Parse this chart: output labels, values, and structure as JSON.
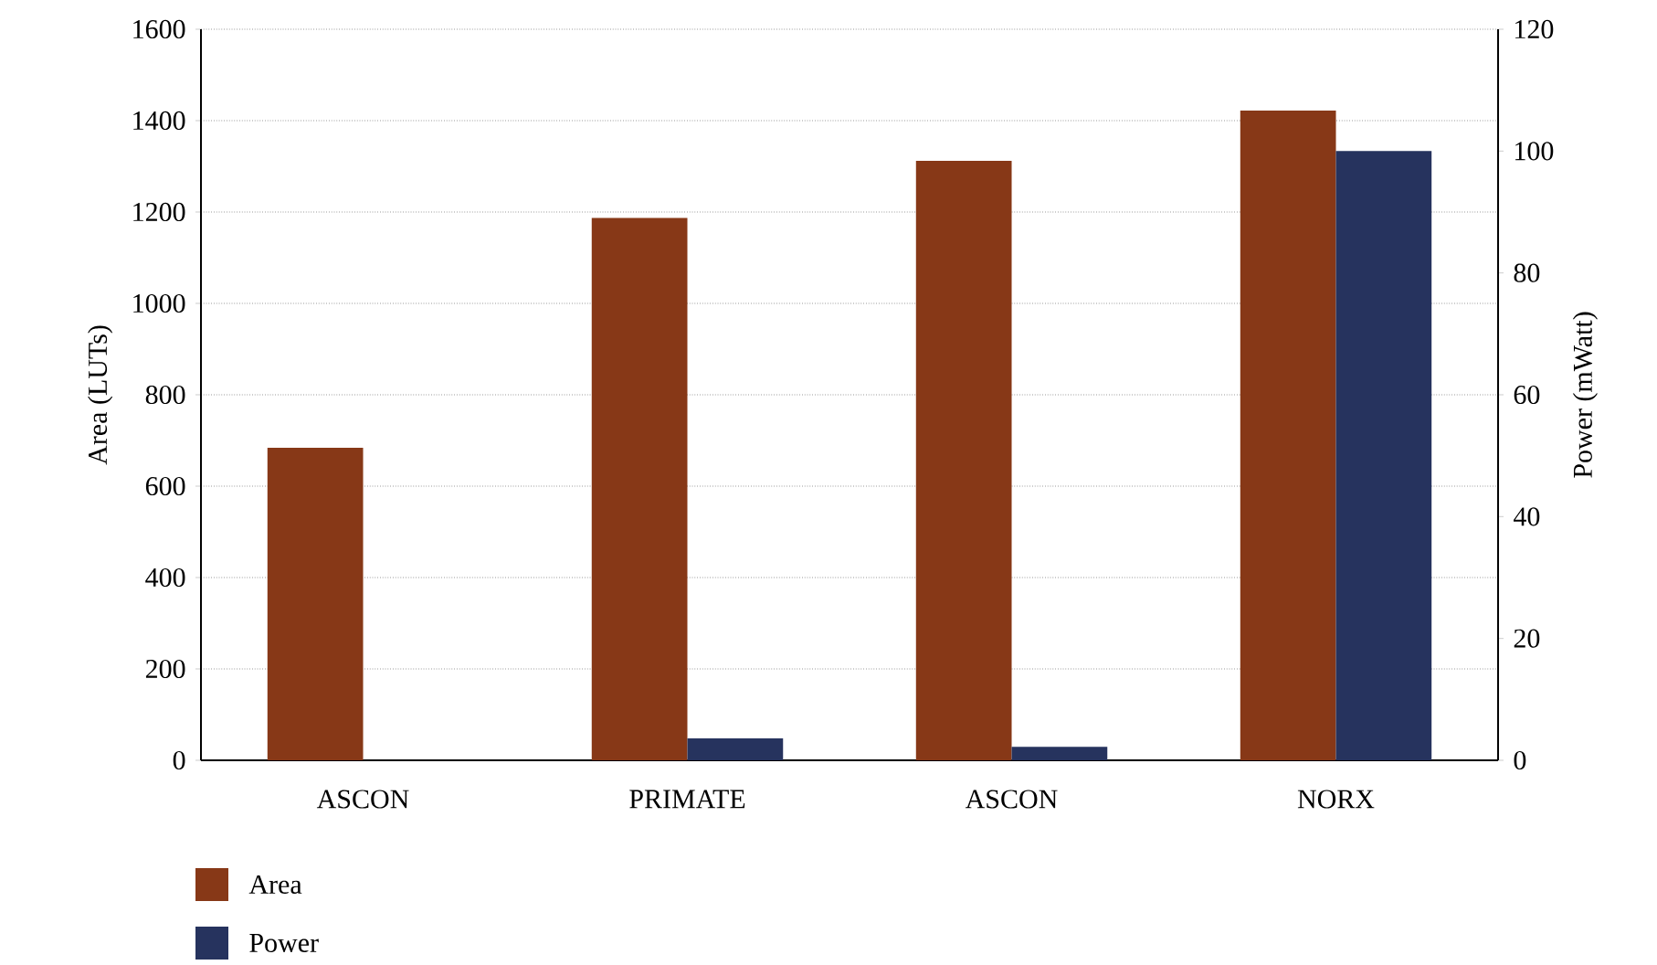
{
  "chart_data": {
    "type": "bar",
    "categories": [
      "ASCON",
      "PRIMATE",
      "ASCON",
      "NORX"
    ],
    "series": [
      {
        "name": "Area",
        "color": "#873817",
        "values": [
          684,
          1187,
          1312,
          1422
        ]
      },
      {
        "name": "Power",
        "color": "#26335e",
        "axis": "y2",
        "values": [
          null,
          3.6,
          2.2,
          100
        ]
      }
    ],
    "ylabel": "Area (LUTs)",
    "y2label": "Power (mWatt)",
    "ylim": [
      0,
      1600
    ],
    "yticks": [
      0,
      200,
      400,
      600,
      800,
      1000,
      1200,
      1400,
      1600
    ],
    "y2lim": [
      0,
      120
    ],
    "y2ticks": [
      0,
      20,
      40,
      60,
      80,
      100,
      120
    ],
    "grid": "y",
    "legend": "bottom"
  }
}
